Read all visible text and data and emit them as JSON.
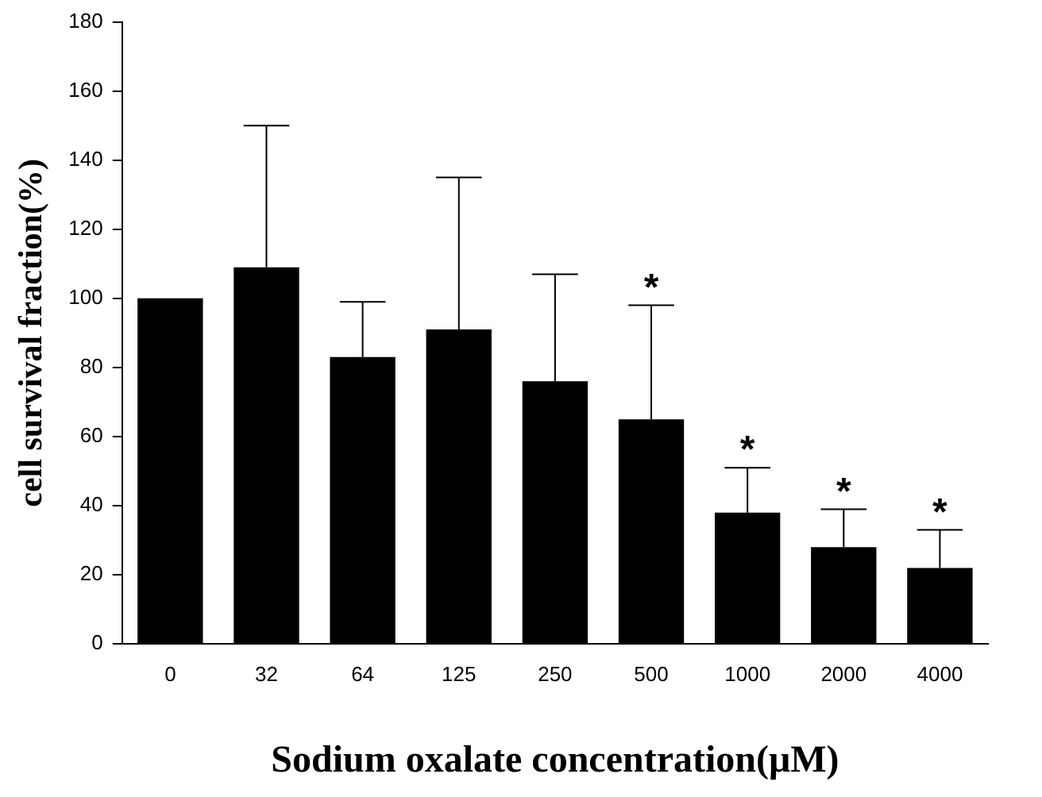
{
  "chart_data": {
    "type": "bar",
    "xlabel": "Sodium oxalate concentration(μM)",
    "ylabel": "cell survival fraction(%)",
    "categories": [
      "0",
      "32",
      "64",
      "125",
      "250",
      "500",
      "1000",
      "2000",
      "4000"
    ],
    "values": [
      100,
      109,
      83,
      91,
      76,
      65,
      38,
      28,
      22
    ],
    "errors": [
      null,
      [
        109,
        150
      ],
      [
        83,
        99
      ],
      [
        91,
        135
      ],
      [
        76,
        107
      ],
      [
        65,
        98
      ],
      [
        38,
        51
      ],
      [
        28,
        39
      ],
      [
        22,
        33
      ]
    ],
    "color": "#000000",
    "ylim": [
      0,
      180
    ],
    "yticks": [
      0,
      20,
      40,
      60,
      80,
      100,
      120,
      140,
      160,
      180
    ],
    "grid": false,
    "legend": false,
    "annotations": [
      {
        "text": "*",
        "x": "500",
        "y": 98
      },
      {
        "text": "*",
        "x": "1000",
        "y": 51
      },
      {
        "text": "*",
        "x": "2000",
        "y": 39
      },
      {
        "text": "*",
        "x": "4000",
        "y": 33
      }
    ]
  }
}
